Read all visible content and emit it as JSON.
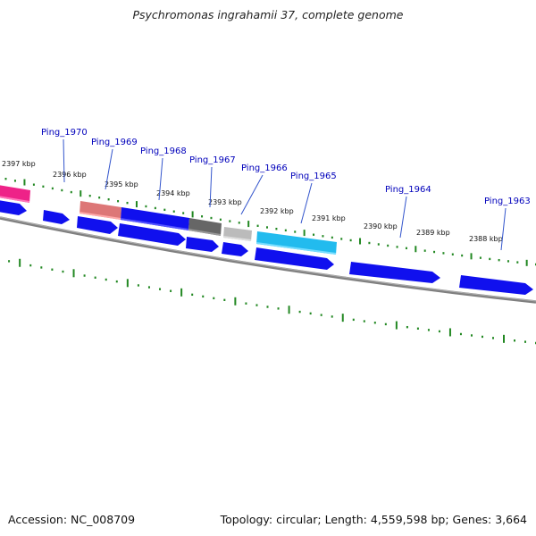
{
  "title": "Psychromonas ingrahamii 37, complete genome",
  "accession": "Accession: NC_008709",
  "topology": "Topology: circular; Length: 4,559,598 bp; Genes: 3,664",
  "colors": {
    "backbone": "#808080",
    "ticks": "#228822",
    "gene_label": "#0000bb",
    "kbp_label": "#111111",
    "pointer_line": "#3355cc"
  },
  "kbp_labels": [
    {
      "text": "2397 kbp",
      "pos": 0.0
    },
    {
      "text": "2396 kbp",
      "pos": 0.1
    },
    {
      "text": "2395 kbp",
      "pos": 0.2
    },
    {
      "text": "2394 kbp",
      "pos": 0.3
    },
    {
      "text": "2393 kbp",
      "pos": 0.4
    },
    {
      "text": "2392 kbp",
      "pos": 0.5
    },
    {
      "text": "2391 kbp",
      "pos": 0.6
    },
    {
      "text": "2390 kbp",
      "pos": 0.7
    },
    {
      "text": "2389 kbp",
      "pos": 0.8
    },
    {
      "text": "2388 kbp",
      "pos": 0.9
    }
  ],
  "gene_labels": [
    {
      "text": "Ping_1970"
    },
    {
      "text": "Ping_1969"
    },
    {
      "text": "Ping_1968"
    },
    {
      "text": "Ping_1967"
    },
    {
      "text": "Ping_1966"
    },
    {
      "text": "Ping_1965"
    },
    {
      "text": "Ping_1964"
    },
    {
      "text": "Ping_1963"
    }
  ],
  "feature_colors": {
    "pink": "#ee2288",
    "salmon": "#dd7777",
    "blue": "#1010ee",
    "darkgray": "#666666",
    "lightgray": "#bbbbbb",
    "cyan": "#22bbee"
  }
}
